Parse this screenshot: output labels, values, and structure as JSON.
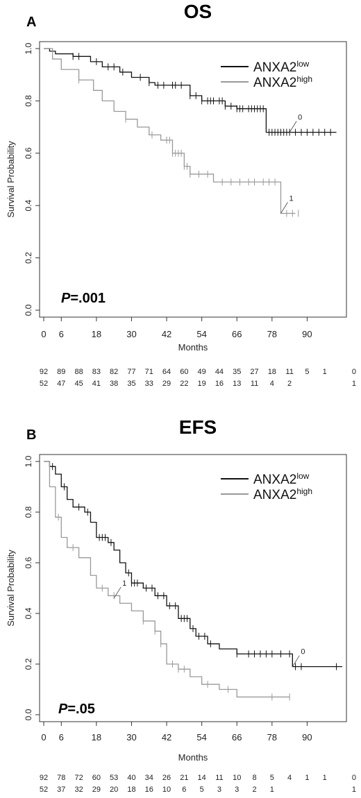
{
  "chart_data": [
    {
      "panel": "A",
      "type": "line",
      "title": "OS",
      "xlabel": "Months",
      "ylabel": "Survival Probability",
      "xlim": [
        0,
        102
      ],
      "ylim": [
        0,
        1
      ],
      "x_ticks": [
        "0",
        "6",
        "18",
        "30",
        "42",
        "54",
        "66",
        "78",
        "90"
      ],
      "x_tick_values": [
        0,
        6,
        18,
        30,
        42,
        54,
        66,
        78,
        90
      ],
      "y_ticks": [
        "0.0",
        "0.2",
        "0.4",
        "0.6",
        "0.8",
        "1.0"
      ],
      "grid": false,
      "legend_position": "top-right",
      "p_value": {
        "prefix": "P",
        "text": "=.001"
      },
      "series": [
        {
          "name": "ANXA2",
          "sup": "low",
          "color": "#111111",
          "steps": [
            [
              0,
              1.0
            ],
            [
              2,
              0.99
            ],
            [
              4,
              0.98
            ],
            [
              10,
              0.97
            ],
            [
              16,
              0.95
            ],
            [
              20,
              0.93
            ],
            [
              26,
              0.91
            ],
            [
              30,
              0.89
            ],
            [
              36,
              0.87
            ],
            [
              38,
              0.86
            ],
            [
              50,
              0.82
            ],
            [
              54,
              0.8
            ],
            [
              62,
              0.78
            ],
            [
              66,
              0.77
            ],
            [
              76,
              0.77
            ],
            [
              76,
              0.68
            ],
            [
              100,
              0.68
            ]
          ],
          "censors": [
            10,
            12,
            18,
            22,
            24,
            27,
            33,
            36,
            39,
            41,
            44,
            45,
            47,
            50,
            52,
            54,
            56,
            57,
            58,
            60,
            61,
            62,
            64,
            66,
            67,
            68,
            70,
            71,
            72,
            73,
            74,
            75,
            77,
            78,
            79,
            80,
            81,
            82,
            83,
            84,
            86,
            88,
            90,
            92,
            94,
            96,
            98
          ],
          "end_label": "0"
        },
        {
          "name": "ANXA2",
          "sup": "high",
          "color": "#999999",
          "steps": [
            [
              0,
              1.0
            ],
            [
              3,
              0.96
            ],
            [
              6,
              0.92
            ],
            [
              12,
              0.88
            ],
            [
              17,
              0.84
            ],
            [
              20,
              0.8
            ],
            [
              24,
              0.76
            ],
            [
              28,
              0.73
            ],
            [
              32,
              0.7
            ],
            [
              36,
              0.67
            ],
            [
              40,
              0.65
            ],
            [
              44,
              0.6
            ],
            [
              48,
              0.55
            ],
            [
              50,
              0.52
            ],
            [
              58,
              0.49
            ],
            [
              81,
              0.49
            ],
            [
              81,
              0.37
            ],
            [
              86,
              0.37
            ]
          ],
          "censors": [
            12,
            28,
            37,
            42,
            43,
            44,
            45,
            46,
            47,
            48,
            49,
            50,
            53,
            56,
            61,
            64,
            67,
            70,
            72,
            75,
            77,
            79,
            83,
            85,
            87
          ],
          "end_label": "1"
        }
      ],
      "risk_table": {
        "times": [
          0,
          6,
          12,
          18,
          24,
          30,
          36,
          42,
          48,
          54,
          60,
          66,
          72,
          78,
          84,
          90,
          96,
          102
        ],
        "rows": [
          {
            "label": "0",
            "values": [
              "92",
              "89",
              "88",
              "83",
              "82",
              "77",
              "71",
              "64",
              "60",
              "49",
              "44",
              "35",
              "27",
              "18",
              "11",
              "5",
              "1"
            ]
          },
          {
            "label": "1",
            "values": [
              "52",
              "47",
              "45",
              "41",
              "38",
              "35",
              "33",
              "29",
              "22",
              "19",
              "16",
              "13",
              "11",
              "4",
              "2"
            ]
          }
        ]
      }
    },
    {
      "panel": "B",
      "type": "line",
      "title": "EFS",
      "xlabel": "Months",
      "ylabel": "Survival Probability",
      "xlim": [
        0,
        102
      ],
      "ylim": [
        0,
        1
      ],
      "x_ticks": [
        "0",
        "6",
        "18",
        "30",
        "42",
        "54",
        "66",
        "78",
        "90"
      ],
      "x_tick_values": [
        0,
        6,
        18,
        30,
        42,
        54,
        66,
        78,
        90
      ],
      "y_ticks": [
        "0.0",
        "0.2",
        "0.4",
        "0.6",
        "0.8",
        "1.0"
      ],
      "grid": false,
      "legend_position": "top-right",
      "p_value": {
        "prefix": "P",
        "text": "=.05"
      },
      "series": [
        {
          "name": "ANXA2",
          "sup": "low",
          "color": "#111111",
          "steps": [
            [
              0,
              1.0
            ],
            [
              2,
              0.98
            ],
            [
              4,
              0.95
            ],
            [
              6,
              0.9
            ],
            [
              8,
              0.85
            ],
            [
              10,
              0.82
            ],
            [
              14,
              0.8
            ],
            [
              16,
              0.76
            ],
            [
              18,
              0.7
            ],
            [
              22,
              0.68
            ],
            [
              24,
              0.65
            ],
            [
              26,
              0.6
            ],
            [
              28,
              0.56
            ],
            [
              30,
              0.52
            ],
            [
              34,
              0.5
            ],
            [
              38,
              0.47
            ],
            [
              42,
              0.43
            ],
            [
              46,
              0.38
            ],
            [
              50,
              0.34
            ],
            [
              52,
              0.31
            ],
            [
              56,
              0.28
            ],
            [
              60,
              0.26
            ],
            [
              66,
              0.24
            ],
            [
              85,
              0.24
            ],
            [
              85,
              0.19
            ],
            [
              102,
              0.19
            ]
          ],
          "censors": [
            3,
            7,
            12,
            15,
            19,
            20,
            21,
            23,
            29,
            30,
            31,
            32,
            35,
            37,
            39,
            41,
            43,
            45,
            47,
            48,
            49,
            51,
            53,
            55,
            57,
            66,
            70,
            72,
            74,
            76,
            78,
            81,
            84,
            86,
            88,
            100
          ],
          "end_label": "0"
        },
        {
          "name": "ANXA2",
          "sup": "high",
          "color": "#999999",
          "steps": [
            [
              0,
              1.0
            ],
            [
              2,
              0.9
            ],
            [
              4,
              0.78
            ],
            [
              6,
              0.7
            ],
            [
              8,
              0.66
            ],
            [
              12,
              0.62
            ],
            [
              16,
              0.55
            ],
            [
              18,
              0.5
            ],
            [
              22,
              0.47
            ],
            [
              26,
              0.44
            ],
            [
              30,
              0.41
            ],
            [
              34,
              0.37
            ],
            [
              38,
              0.33
            ],
            [
              40,
              0.28
            ],
            [
              42,
              0.2
            ],
            [
              46,
              0.18
            ],
            [
              50,
              0.15
            ],
            [
              54,
              0.12
            ],
            [
              60,
              0.1
            ],
            [
              66,
              0.1
            ],
            [
              66,
              0.07
            ],
            [
              84,
              0.07
            ]
          ],
          "censors": [
            5,
            10,
            20,
            24,
            34,
            38,
            40,
            44,
            46,
            48,
            56,
            63,
            78,
            84
          ],
          "end_label": "1"
        }
      ],
      "risk_table": {
        "times": [
          0,
          6,
          12,
          18,
          24,
          30,
          36,
          42,
          48,
          54,
          60,
          66,
          72,
          78,
          84,
          90,
          96,
          102
        ],
        "rows": [
          {
            "label": "0",
            "values": [
              "92",
              "78",
              "72",
              "60",
              "53",
              "40",
              "34",
              "26",
              "21",
              "14",
              "11",
              "10",
              "8",
              "5",
              "4",
              "1",
              "1"
            ]
          },
          {
            "label": "1",
            "values": [
              "52",
              "37",
              "32",
              "29",
              "20",
              "18",
              "16",
              "10",
              "6",
              "5",
              "3",
              "3",
              "2",
              "1"
            ]
          }
        ]
      }
    }
  ]
}
